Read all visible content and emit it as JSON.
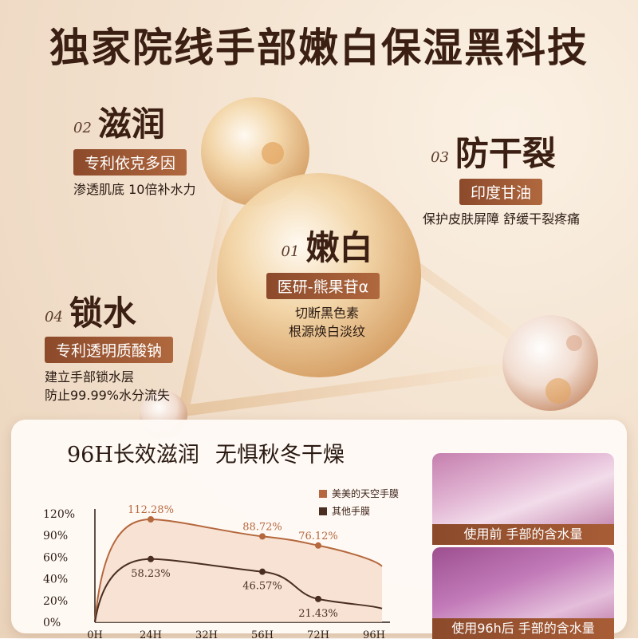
{
  "title": "独家院线手部嫩白保湿黑科技",
  "features": [
    {
      "num": "01",
      "name": "嫩白",
      "tag": "医研-熊果苷α",
      "lines": [
        "切断黑色素",
        "根源焕白淡纹"
      ]
    },
    {
      "num": "02",
      "name": "滋润",
      "tag": "专利依克多因",
      "lines": [
        "渗透肌底  10倍补水力"
      ]
    },
    {
      "num": "03",
      "name": "防干裂",
      "tag": "印度甘油",
      "lines": [
        "保护皮肤屏障  舒缓干裂疼痛"
      ]
    },
    {
      "num": "04",
      "name": "锁水",
      "tag": "专利透明质酸钠",
      "lines": [
        "建立手部锁水层",
        "防止99.99%水分流失"
      ]
    }
  ],
  "chart_panel": {
    "title_a": "96H长效滋润",
    "title_b": "无惧秋冬干燥",
    "photo_before": "使用前  手部的含水量",
    "photo_after": "使用96h后  手部的含水量"
  },
  "chart_data": {
    "type": "line",
    "categories": [
      "0H",
      "24H",
      "32H",
      "56H",
      "72H",
      "96H"
    ],
    "y_ticks": [
      "0%",
      "20%",
      "40%",
      "60%",
      "90%",
      "120%"
    ],
    "series": [
      {
        "name": "美美的天空手膜",
        "color": "#b5683d",
        "points": [
          {
            "x": "24H",
            "value": "112.28%"
          },
          {
            "x": "56H",
            "value": "88.72%"
          },
          {
            "x": "72H",
            "value": "76.12%"
          }
        ]
      },
      {
        "name": "其他手膜",
        "color": "#4a2e22",
        "points": [
          {
            "x": "24H",
            "value": "58.23%"
          },
          {
            "x": "56H",
            "value": "46.57%"
          },
          {
            "x": "72H",
            "value": "21.43%"
          }
        ]
      }
    ]
  }
}
